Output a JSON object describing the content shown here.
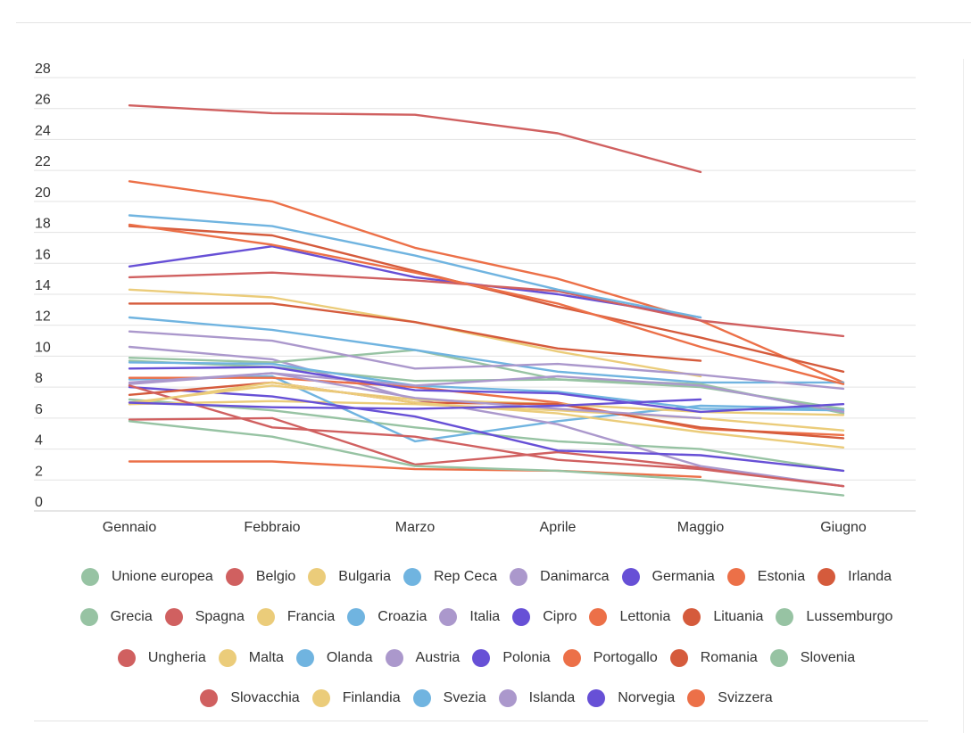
{
  "chart_data": {
    "type": "line",
    "title": "",
    "xlabel": "",
    "ylabel": "",
    "categories": [
      "Gennaio",
      "Febbraio",
      "Marzo",
      "Aprile",
      "Maggio",
      "Giugno"
    ],
    "ylim": [
      0,
      28
    ],
    "yticks": [
      0,
      2,
      4,
      6,
      8,
      10,
      12,
      14,
      16,
      18,
      20,
      22,
      24,
      26,
      28
    ],
    "grid": true,
    "legend_position": "bottom",
    "series": [
      {
        "name": "Unione europea",
        "color": "#97c3a3",
        "values": [
          7.2,
          6.5,
          5.4,
          4.5,
          4.0,
          2.6
        ]
      },
      {
        "name": "Belgio",
        "color": "#d06060",
        "values": [
          5.9,
          6.0,
          3.0,
          3.8,
          2.8,
          1.6
        ]
      },
      {
        "name": "Bulgaria",
        "color": "#ebcc7a",
        "values": [
          6.9,
          7.1,
          6.9,
          6.5,
          6.0,
          5.2
        ]
      },
      {
        "name": "Rep Ceca",
        "color": "#70b4e0",
        "values": [
          8.5,
          8.7,
          4.5,
          5.8,
          6.8,
          6.6
        ]
      },
      {
        "name": "Danimarca",
        "color": "#ab98cc",
        "values": [
          10.6,
          9.8,
          7.2,
          5.6,
          2.9,
          1.6
        ]
      },
      {
        "name": "Germania",
        "color": "#6750d6",
        "values": [
          15.8,
          17.1,
          15.1,
          14.0,
          12.5,
          null
        ]
      },
      {
        "name": "Estonia",
        "color": "#ec7048",
        "values": [
          21.3,
          20.0,
          17.0,
          15.0,
          12.3,
          8.3
        ]
      },
      {
        "name": "Irlanda",
        "color": "#d55b3c",
        "values": [
          18.4,
          17.8,
          15.5,
          13.2,
          11.2,
          9.0
        ]
      },
      {
        "name": "Grecia",
        "color": "#97c3a3",
        "values": [
          9.9,
          9.6,
          10.4,
          8.5,
          8.0,
          6.6
        ]
      },
      {
        "name": "Spagna",
        "color": "#d06060",
        "values": [
          26.2,
          25.7,
          25.6,
          24.4,
          21.9,
          null
        ]
      },
      {
        "name": "Francia",
        "color": "#ebcc7a",
        "values": [
          14.3,
          13.8,
          12.2,
          10.3,
          8.7,
          null
        ]
      },
      {
        "name": "Croazia",
        "color": "#70b4e0",
        "values": [
          12.5,
          11.7,
          10.4,
          9.0,
          8.3,
          8.3
        ]
      },
      {
        "name": "Italia",
        "color": "#ab98cc",
        "values": [
          11.6,
          11.0,
          9.2,
          9.5,
          8.8,
          7.9
        ]
      },
      {
        "name": "Cipro",
        "color": "#6750d6",
        "values": [
          8.0,
          7.4,
          6.1,
          3.9,
          3.6,
          2.6
        ]
      },
      {
        "name": "Lettonia",
        "color": "#ec7048",
        "values": [
          8.6,
          8.6,
          8.0,
          7.0,
          5.3,
          4.9
        ]
      },
      {
        "name": "Lituania",
        "color": "#d55b3c",
        "values": [
          13.4,
          13.4,
          12.2,
          10.5,
          9.7,
          null
        ]
      },
      {
        "name": "Lussemburgo",
        "color": "#97c3a3",
        "values": [
          9.7,
          9.3,
          8.4,
          8.5,
          8.2,
          6.3
        ]
      },
      {
        "name": "Ungheria",
        "color": "#d06060",
        "values": [
          15.1,
          15.4,
          14.9,
          14.2,
          12.3,
          11.3
        ]
      },
      {
        "name": "Malta",
        "color": "#ebcc7a",
        "values": [
          7.0,
          8.1,
          7.2,
          6.9,
          6.4,
          6.2
        ]
      },
      {
        "name": "Olanda",
        "color": "#70b4e0",
        "values": [
          9.6,
          9.5,
          8.1,
          7.7,
          6.6,
          6.5
        ]
      },
      {
        "name": "Austria",
        "color": "#ab98cc",
        "values": [
          8.2,
          8.9,
          8.1,
          8.7,
          8.1,
          6.4
        ]
      },
      {
        "name": "Polonia",
        "color": "#6750d6",
        "values": [
          9.2,
          9.3,
          7.8,
          7.6,
          6.4,
          6.9
        ]
      },
      {
        "name": "Portogallo",
        "color": "#ec7048",
        "values": [
          3.2,
          3.2,
          2.7,
          2.6,
          2.2,
          null
        ]
      },
      {
        "name": "Romania",
        "color": "#d55b3c",
        "values": [
          7.5,
          8.3,
          7.0,
          6.9,
          5.4,
          4.7
        ]
      },
      {
        "name": "Slovenia",
        "color": "#97c3a3",
        "values": [
          5.8,
          4.8,
          2.9,
          2.6,
          2.0,
          1.0
        ]
      },
      {
        "name": "Slovacchia",
        "color": "#d06060",
        "values": [
          8.1,
          5.4,
          4.8,
          3.3,
          2.7,
          1.6
        ]
      },
      {
        "name": "Finlandia",
        "color": "#ebcc7a",
        "values": [
          6.9,
          8.3,
          7.0,
          6.3,
          5.1,
          4.1
        ]
      },
      {
        "name": "Svezia",
        "color": "#70b4e0",
        "values": [
          19.1,
          18.4,
          16.5,
          14.3,
          12.5,
          null
        ]
      },
      {
        "name": "Islanda",
        "color": "#ab98cc",
        "values": [
          8.3,
          8.9,
          7.3,
          6.6,
          6.0,
          null
        ]
      },
      {
        "name": "Norvegia",
        "color": "#6750d6",
        "values": [
          7.0,
          6.7,
          6.6,
          6.8,
          7.2,
          null
        ]
      },
      {
        "name": "Svizzera",
        "color": "#ec7048",
        "values": [
          18.5,
          17.2,
          15.4,
          13.4,
          10.6,
          8.2
        ]
      }
    ]
  }
}
